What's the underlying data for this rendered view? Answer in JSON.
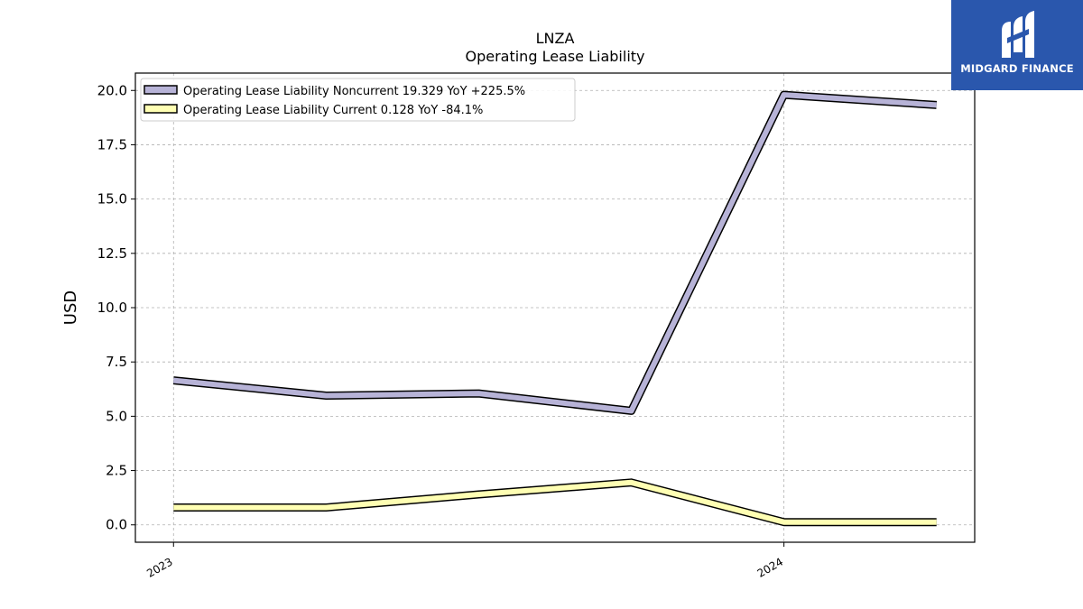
{
  "logo": {
    "text": "MIDGARD FINANCE",
    "icon": "midgard-logo-icon",
    "background": "#2a57ad"
  },
  "chart_data": {
    "type": "line",
    "title": "LNZA",
    "subtitle": "Operating Lease Liability",
    "ylabel": "USD",
    "xlabel": "",
    "ylim": [
      -0.8,
      20.8
    ],
    "xlim": [
      -0.25,
      5.25
    ],
    "yticks": [
      0.0,
      2.5,
      5.0,
      7.5,
      10.0,
      12.5,
      15.0,
      17.5,
      20.0
    ],
    "ytick_labels": [
      "0.0",
      "2.5",
      "5.0",
      "7.5",
      "10.0",
      "12.5",
      "15.0",
      "17.5",
      "20.0"
    ],
    "xticks": [
      0,
      4
    ],
    "xtick_labels": [
      "2023",
      "2024"
    ],
    "grid": true,
    "legend_position": "top-left",
    "x": [
      0,
      1,
      2,
      3,
      4,
      5
    ],
    "series": [
      {
        "name": "Operating Lease Liability Noncurrent",
        "legend_label": "Operating Lease Liability Noncurrent  19.329 YoY +225.5%",
        "color": "#b7b3d7",
        "values": [
          6.65,
          5.95,
          6.05,
          5.25,
          19.8,
          19.329
        ]
      },
      {
        "name": "Operating Lease Liability Current",
        "legend_label": "Operating Lease Liability Current  0.128 YoY -84.1%",
        "color": "#ffffb3",
        "values": [
          0.8,
          0.8,
          1.4,
          1.95,
          0.128,
          0.128
        ]
      }
    ]
  }
}
